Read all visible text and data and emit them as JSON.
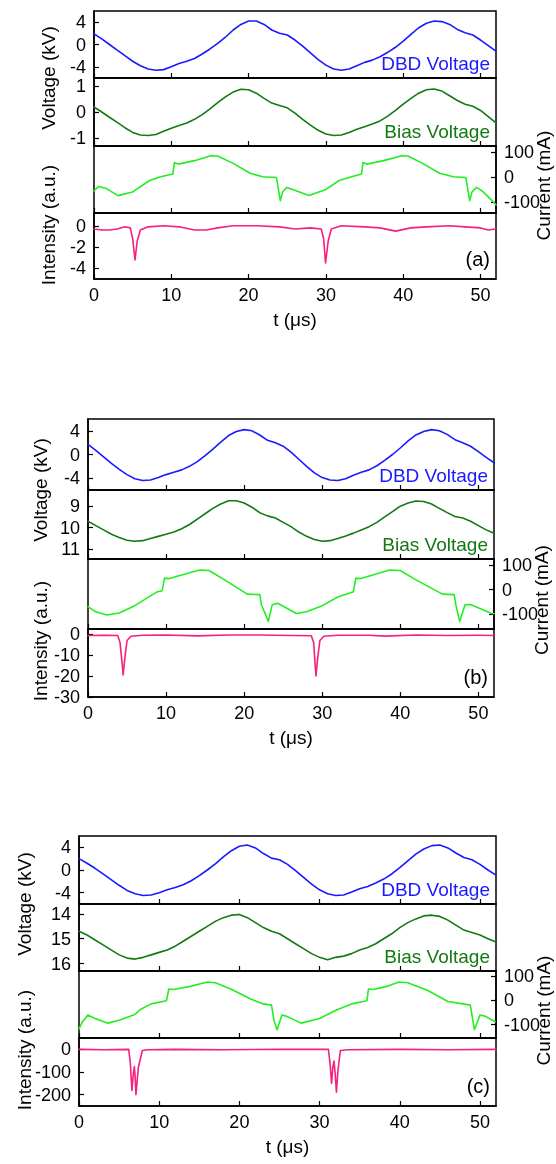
{
  "chart_data": [
    {
      "type": "line",
      "ylabel": "Voltage (kV)",
      "xlim": [
        0,
        52
      ],
      "xticks": [
        0,
        10,
        20,
        30,
        40,
        50
      ],
      "ylim": [
        -6,
        6
      ],
      "yticks": [
        -4,
        0,
        4
      ],
      "tick_labels": "y",
      "x": [
        0,
        1,
        2,
        3,
        4,
        5,
        6,
        7,
        8,
        9,
        10,
        11,
        12,
        13,
        14,
        15,
        16,
        17,
        18,
        19,
        20,
        21,
        22,
        23,
        24,
        25,
        26,
        27,
        28,
        29,
        30,
        31,
        32,
        33,
        34,
        35,
        36,
        37,
        38,
        39,
        40,
        41,
        42,
        43,
        44,
        45,
        46,
        47,
        48,
        49,
        50,
        51,
        52
      ],
      "series": [
        {
          "name": "DBD Voltage",
          "color": "#1a1aff",
          "values": [
            1.9,
            1.0,
            0.0,
            -1.0,
            -2.0,
            -3.0,
            -3.8,
            -4.4,
            -4.6,
            -4.5,
            -4.0,
            -3.4,
            -3.0,
            -2.5,
            -1.7,
            -0.8,
            0.2,
            1.3,
            2.6,
            3.6,
            4.2,
            4.2,
            3.6,
            2.6,
            2.0,
            1.7,
            0.8,
            -0.3,
            -1.5,
            -2.7,
            -3.7,
            -4.4,
            -4.6,
            -4.4,
            -3.8,
            -3.2,
            -2.8,
            -2.2,
            -1.4,
            -0.5,
            0.6,
            1.8,
            3.0,
            3.8,
            4.2,
            4.1,
            3.6,
            2.7,
            2.1,
            1.7,
            0.8,
            -0.2,
            -1.2
          ]
        }
      ]
    },
    {
      "type": "line",
      "xlim": [
        0,
        52
      ],
      "xticks": [
        0,
        10,
        20,
        30,
        40,
        50
      ],
      "ylim": [
        -1.3,
        1.3
      ],
      "yticks": [
        -1,
        0,
        1
      ],
      "tick_labels": "y",
      "x": [
        0,
        1,
        2,
        3,
        4,
        5,
        6,
        7,
        8,
        9,
        10,
        11,
        12,
        13,
        14,
        15,
        16,
        17,
        18,
        19,
        20,
        21,
        22,
        23,
        24,
        25,
        26,
        27,
        28,
        29,
        30,
        31,
        32,
        33,
        34,
        35,
        36,
        37,
        38,
        39,
        40,
        41,
        42,
        43,
        44,
        45,
        46,
        47,
        48,
        49,
        50,
        51,
        52
      ],
      "series": [
        {
          "name": "Bias Voltage",
          "color": "#127a12",
          "values": [
            0.19,
            0.0,
            -0.2,
            -0.4,
            -0.6,
            -0.78,
            -0.88,
            -0.9,
            -0.86,
            -0.74,
            -0.62,
            -0.52,
            -0.42,
            -0.28,
            -0.1,
            0.12,
            0.36,
            0.58,
            0.76,
            0.87,
            0.85,
            0.72,
            0.52,
            0.34,
            0.25,
            0.16,
            -0.04,
            -0.28,
            -0.5,
            -0.7,
            -0.84,
            -0.9,
            -0.88,
            -0.78,
            -0.66,
            -0.56,
            -0.46,
            -0.34,
            -0.16,
            0.06,
            0.3,
            0.52,
            0.72,
            0.85,
            0.88,
            0.8,
            0.62,
            0.44,
            0.3,
            0.22,
            0.06,
            -0.18,
            -0.42
          ]
        }
      ]
    },
    {
      "type": "line",
      "y2label": "Current (mA)",
      "xlim": [
        0,
        52
      ],
      "xticks": [
        0,
        10,
        20,
        30,
        40,
        50
      ],
      "y2lim": [
        -145,
        125
      ],
      "y2ticks": [
        -100,
        0,
        100
      ],
      "tick_labels": "y",
      "x": [
        0,
        0.6,
        1.5,
        3.1,
        5,
        7.2,
        8.5,
        10.2,
        10.4,
        10.9,
        13,
        15.1,
        16,
        18,
        20.2,
        21.8,
        23.6,
        24.1,
        24.4,
        24.9,
        25.6,
        27.8,
        30,
        31.7,
        33,
        34.6,
        34.8,
        35.3,
        37.5,
        39.8,
        40.6,
        42.5,
        44.7,
        46.5,
        48.1,
        48.6,
        48.9,
        49.5,
        50.2,
        51,
        52
      ],
      "series": [
        {
          "color": "#22ee22",
          "axis": "y2",
          "values": [
            -56,
            -38,
            -45,
            -75,
            -60,
            -14,
            0,
            12,
            58,
            52,
            66,
            86,
            85,
            55,
            15,
            1,
            -2,
            -95,
            -60,
            -42,
            -49,
            -74,
            -50,
            -14,
            -2,
            12,
            58,
            52,
            66,
            86,
            85,
            55,
            15,
            1,
            -2,
            -95,
            -60,
            -42,
            -56,
            -80,
            -112
          ]
        }
      ]
    },
    {
      "type": "line",
      "ylabel": "Intensity (a.u.)",
      "xlabel": "t (μs)",
      "annotations": [
        "(a)"
      ],
      "xlim": [
        0,
        52
      ],
      "xticks": [
        0,
        10,
        20,
        30,
        40,
        50
      ],
      "ylim": [
        -5,
        1.2
      ],
      "yticks": [
        -4,
        -2,
        0
      ],
      "x": [
        0,
        1,
        2,
        3,
        4,
        4.7,
        5,
        5.3,
        5.6,
        6,
        7,
        9,
        11,
        13,
        14.5,
        16,
        18,
        21,
        24,
        26,
        28,
        29.4,
        29.7,
        29.95,
        30.3,
        30.7,
        32,
        35,
        37,
        39,
        41,
        43,
        46,
        48,
        50,
        51,
        52
      ],
      "series": [
        {
          "color": "#f5207f",
          "values": [
            -0.3,
            -0.4,
            -0.4,
            -0.3,
            -0.1,
            -0.2,
            -1.2,
            -3.2,
            -1.4,
            -0.4,
            -0.1,
            0,
            -0.1,
            -0.4,
            -0.4,
            -0.2,
            0,
            0,
            -0.1,
            -0.3,
            -0.2,
            -0.3,
            -1.2,
            -3.5,
            -1.4,
            -0.3,
            0,
            -0.1,
            -0.2,
            -0.5,
            -0.2,
            -0.1,
            0,
            -0.1,
            -0.2,
            -0.4,
            -0.3
          ]
        }
      ]
    },
    {
      "type": "line",
      "ylabel": "Voltage (kV)",
      "xlim": [
        0,
        52
      ],
      "xticks": [
        0,
        10,
        20,
        30,
        40,
        50
      ],
      "ylim": [
        -6,
        6
      ],
      "yticks": [
        -4,
        0,
        4
      ],
      "tick_labels": "y",
      "x": [
        0,
        1,
        2,
        3,
        4,
        5,
        6,
        7,
        8,
        9,
        10,
        11,
        12,
        13,
        14,
        15,
        16,
        17,
        18,
        19,
        20,
        21,
        22,
        23,
        24,
        25,
        26,
        27,
        28,
        29,
        30,
        31,
        32,
        33,
        34,
        35,
        36,
        37,
        38,
        39,
        40,
        41,
        42,
        43,
        44,
        45,
        46,
        47,
        48,
        49,
        50,
        51,
        52
      ],
      "series": [
        {
          "name": "DBD Voltage",
          "color": "#1a1aff",
          "values": [
            1.7,
            0.7,
            -0.4,
            -1.5,
            -2.5,
            -3.4,
            -4.1,
            -4.4,
            -4.3,
            -3.9,
            -3.4,
            -3.0,
            -2.6,
            -2.0,
            -1.2,
            -0.2,
            0.9,
            2.1,
            3.2,
            3.9,
            4.2,
            4.0,
            3.3,
            2.4,
            2.0,
            1.4,
            0.4,
            -0.8,
            -2.0,
            -3.1,
            -3.9,
            -4.3,
            -4.4,
            -4.1,
            -3.5,
            -3.0,
            -2.6,
            -1.9,
            -1.0,
            0.0,
            1.1,
            2.3,
            3.3,
            3.9,
            4.2,
            4.0,
            3.4,
            2.5,
            2.0,
            1.4,
            0.5,
            -0.5,
            -1.4
          ]
        }
      ]
    },
    {
      "type": "line",
      "xlim": [
        0,
        52
      ],
      "xticks": [
        0,
        10,
        20,
        30,
        40,
        50
      ],
      "ylim": [
        11.45,
        8.25
      ],
      "yticks": [
        9,
        10,
        11
      ],
      "tick_labels": "y",
      "x": [
        0,
        1,
        2,
        3,
        4,
        5,
        6,
        7,
        8,
        9,
        10,
        11,
        12,
        13,
        14,
        15,
        16,
        17,
        18,
        19,
        20,
        21,
        22,
        23,
        24,
        25,
        26,
        27,
        28,
        29,
        30,
        31,
        32,
        33,
        34,
        35,
        36,
        37,
        38,
        39,
        40,
        41,
        42,
        43,
        44,
        45,
        46,
        47,
        48,
        49,
        50,
        51,
        52
      ],
      "series": [
        {
          "name": "Bias Voltage",
          "color": "#127a12",
          "values": [
            9.7,
            9.9,
            10.1,
            10.3,
            10.45,
            10.58,
            10.63,
            10.6,
            10.5,
            10.4,
            10.3,
            10.2,
            10.05,
            9.85,
            9.6,
            9.35,
            9.1,
            8.9,
            8.75,
            8.75,
            8.85,
            9.05,
            9.3,
            9.45,
            9.55,
            9.75,
            9.95,
            10.2,
            10.4,
            10.55,
            10.63,
            10.6,
            10.5,
            10.38,
            10.25,
            10.1,
            9.95,
            9.75,
            9.5,
            9.25,
            9.0,
            8.85,
            8.76,
            8.78,
            8.9,
            9.1,
            9.3,
            9.48,
            9.55,
            9.7,
            9.9,
            10.1,
            10.26
          ]
        }
      ]
    },
    {
      "type": "line",
      "y2label": "Current (mA)",
      "xlim": [
        0,
        52
      ],
      "xticks": [
        0,
        10,
        20,
        30,
        40,
        50
      ],
      "y2lim": [
        -160,
        125
      ],
      "y2ticks": [
        -100,
        0,
        100
      ],
      "tick_labels": "y",
      "x": [
        0,
        1,
        2.4,
        4,
        6,
        8,
        8.9,
        9.5,
        9.8,
        10.3,
        12,
        14.3,
        15.5,
        17.5,
        20.4,
        22,
        22.2,
        23.1,
        23.6,
        24.3,
        26.7,
        28,
        30,
        32,
        34,
        34.3,
        34.8,
        36.5,
        38.6,
        40,
        42,
        45.4,
        46.9,
        47.1,
        47.6,
        48.3,
        49,
        51.7,
        52
      ],
      "series": [
        {
          "color": "#22ee22",
          "axis": "y2",
          "values": [
            -69,
            -90,
            -103,
            -95,
            -65,
            -25,
            -8,
            -4,
            47,
            45,
            60,
            80,
            78,
            40,
            -18,
            -20,
            -60,
            -129,
            -61,
            -55,
            -97,
            -90,
            -65,
            -30,
            -8,
            47,
            45,
            60,
            80,
            78,
            40,
            -18,
            -20,
            -60,
            -129,
            -61,
            -60,
            -97,
            -98
          ]
        }
      ]
    },
    {
      "type": "line",
      "ylabel": "Intensity (a.u.)",
      "xlabel": "t (μs)",
      "annotations": [
        "(b)"
      ],
      "xlim": [
        0,
        52
      ],
      "xticks": [
        0,
        10,
        20,
        30,
        40,
        50
      ],
      "ylim": [
        -30,
        2.5
      ],
      "yticks": [
        -30,
        -20,
        -10,
        0
      ],
      "x": [
        0,
        2,
        3.8,
        4.1,
        4.4,
        4.5,
        4.7,
        5,
        5.5,
        7,
        10,
        14,
        18,
        22,
        26,
        28.6,
        28.9,
        29.1,
        29.2,
        29.4,
        29.7,
        30.2,
        32,
        36,
        38,
        42,
        46,
        50,
        52
      ],
      "series": [
        {
          "color": "#f5207f",
          "values": [
            -0.6,
            -0.5,
            -0.6,
            -4,
            -15,
            -19.4,
            -12,
            -3,
            -1,
            -0.5,
            -0.4,
            -0.8,
            -0.4,
            -0.4,
            -0.6,
            -0.7,
            -4,
            -15,
            -19.9,
            -12,
            -3,
            -1,
            -0.5,
            -0.5,
            -0.9,
            -0.4,
            -0.6,
            -0.5,
            -0.6
          ]
        }
      ]
    },
    {
      "type": "line",
      "ylabel": "Voltage (kV)",
      "xlim": [
        0,
        52
      ],
      "xticks": [
        0,
        10,
        20,
        30,
        40,
        50
      ],
      "ylim": [
        -6,
        6
      ],
      "yticks": [
        -4,
        0,
        4
      ],
      "tick_labels": "y",
      "x": [
        0,
        1,
        2,
        3,
        4,
        5,
        6,
        7,
        8,
        9,
        10,
        11,
        12,
        13,
        14,
        15,
        16,
        17,
        18,
        19,
        20,
        21,
        22,
        23,
        24,
        25,
        26,
        27,
        28,
        29,
        30,
        31,
        32,
        33,
        34,
        35,
        36,
        37,
        38,
        39,
        40,
        41,
        42,
        43,
        44,
        45,
        46,
        47,
        48,
        49,
        50,
        51,
        52
      ],
      "series": [
        {
          "name": "DBD Voltage",
          "color": "#1a1aff",
          "values": [
            2.0,
            1.2,
            0.3,
            -0.7,
            -1.7,
            -2.7,
            -3.6,
            -4.2,
            -4.5,
            -4.4,
            -4.0,
            -3.5,
            -3.1,
            -2.6,
            -1.9,
            -1.0,
            0.0,
            1.1,
            2.3,
            3.4,
            4.2,
            4.4,
            3.9,
            2.9,
            2.1,
            1.8,
            1.0,
            -0.1,
            -1.3,
            -2.5,
            -3.5,
            -4.2,
            -4.5,
            -4.4,
            -3.9,
            -3.3,
            -2.9,
            -2.3,
            -1.6,
            -0.7,
            0.4,
            1.6,
            2.8,
            3.7,
            4.3,
            4.4,
            3.9,
            3.0,
            2.2,
            1.8,
            1.0,
            0.0,
            -0.9
          ]
        }
      ]
    },
    {
      "type": "line",
      "xlim": [
        0,
        52
      ],
      "xticks": [
        0,
        10,
        20,
        30,
        40,
        50
      ],
      "ylim": [
        16.3,
        13.6
      ],
      "yticks": [
        14,
        15,
        16
      ],
      "tick_labels": "y",
      "x": [
        0,
        1,
        2,
        3,
        4,
        5,
        6,
        7,
        8,
        9,
        10,
        11,
        12,
        13,
        14,
        15,
        16,
        17,
        18,
        19,
        20,
        21,
        22,
        23,
        24,
        25,
        26,
        27,
        28,
        29,
        30,
        31,
        32,
        33,
        34,
        35,
        36,
        37,
        38,
        39,
        40,
        41,
        42,
        43,
        44,
        45,
        46,
        47,
        48,
        49,
        50,
        51,
        52
      ],
      "series": [
        {
          "name": "Bias Voltage",
          "color": "#127a12",
          "values": [
            14.7,
            14.85,
            15.05,
            15.25,
            15.45,
            15.65,
            15.78,
            15.82,
            15.75,
            15.65,
            15.55,
            15.45,
            15.3,
            15.1,
            14.9,
            14.7,
            14.5,
            14.3,
            14.15,
            14.05,
            14.02,
            14.15,
            14.35,
            14.55,
            14.7,
            14.8,
            15.0,
            15.2,
            15.4,
            15.6,
            15.75,
            15.85,
            15.75,
            15.7,
            15.6,
            15.45,
            15.35,
            15.2,
            15.0,
            14.8,
            14.55,
            14.35,
            14.2,
            14.08,
            14.05,
            14.1,
            14.25,
            14.45,
            14.65,
            14.75,
            14.85,
            15.0,
            15.13
          ]
        }
      ]
    },
    {
      "type": "line",
      "y2label": "Current (mA)",
      "xlim": [
        0,
        52
      ],
      "xticks": [
        0,
        10,
        20,
        30,
        40,
        50
      ],
      "y2lim": [
        -155,
        120
      ],
      "y2ticks": [
        -100,
        0,
        100
      ],
      "tick_labels": "y",
      "x": [
        0,
        0.4,
        1.1,
        2,
        3.6,
        5,
        6.8,
        7.1,
        7.6,
        9,
        10.9,
        11.2,
        11.8,
        14,
        16,
        17,
        19,
        21.4,
        23,
        24,
        24.3,
        24.7,
        25.3,
        25.8,
        27.7,
        30,
        32.1,
        34,
        35.9,
        36.1,
        36.7,
        38.5,
        39.9,
        41,
        43.5,
        46,
        48.8,
        49.1,
        49.3,
        50,
        50.6,
        51.9
      ],
      "series": [
        {
          "color": "#22ee22",
          "axis": "y2",
          "values": [
            -118,
            -90,
            -61,
            -75,
            -94,
            -82,
            -61,
            -55,
            -39,
            -15,
            -2,
            46,
            44,
            58,
            75,
            72,
            45,
            5,
            -15,
            -20,
            -80,
            -121,
            -61,
            -65,
            -94,
            -75,
            -40,
            -15,
            -2,
            46,
            44,
            58,
            75,
            72,
            40,
            -5,
            -20,
            -80,
            -121,
            -61,
            -65,
            -88
          ]
        }
      ]
    },
    {
      "type": "line",
      "ylabel": "Intensity (a.u.)",
      "xlabel": "t (μs)",
      "annotations": [
        "(c)"
      ],
      "xlim": [
        0,
        52
      ],
      "xticks": [
        0,
        10,
        20,
        30,
        40,
        50
      ],
      "ylim": [
        -250,
        50
      ],
      "yticks": [
        -200,
        -100,
        0
      ],
      "x": [
        0,
        3,
        6.2,
        6.4,
        6.6,
        6.8,
        6.9,
        7,
        7.1,
        7.4,
        7.9,
        8.5,
        12,
        18,
        25,
        31.1,
        31.3,
        31.5,
        31.65,
        31.8,
        31.95,
        32.1,
        32.3,
        32.6,
        33.5,
        40,
        46,
        52
      ],
      "series": [
        {
          "color": "#f5207f",
          "values": [
            0,
            -2,
            0,
            -60,
            -181,
            -100,
            -76,
            -120,
            -200,
            -80,
            -5,
            -2,
            0,
            -2,
            0,
            0,
            -60,
            -150,
            -80,
            -52,
            -110,
            -189,
            -90,
            -5,
            -2,
            0,
            -2,
            0
          ]
        }
      ]
    }
  ]
}
